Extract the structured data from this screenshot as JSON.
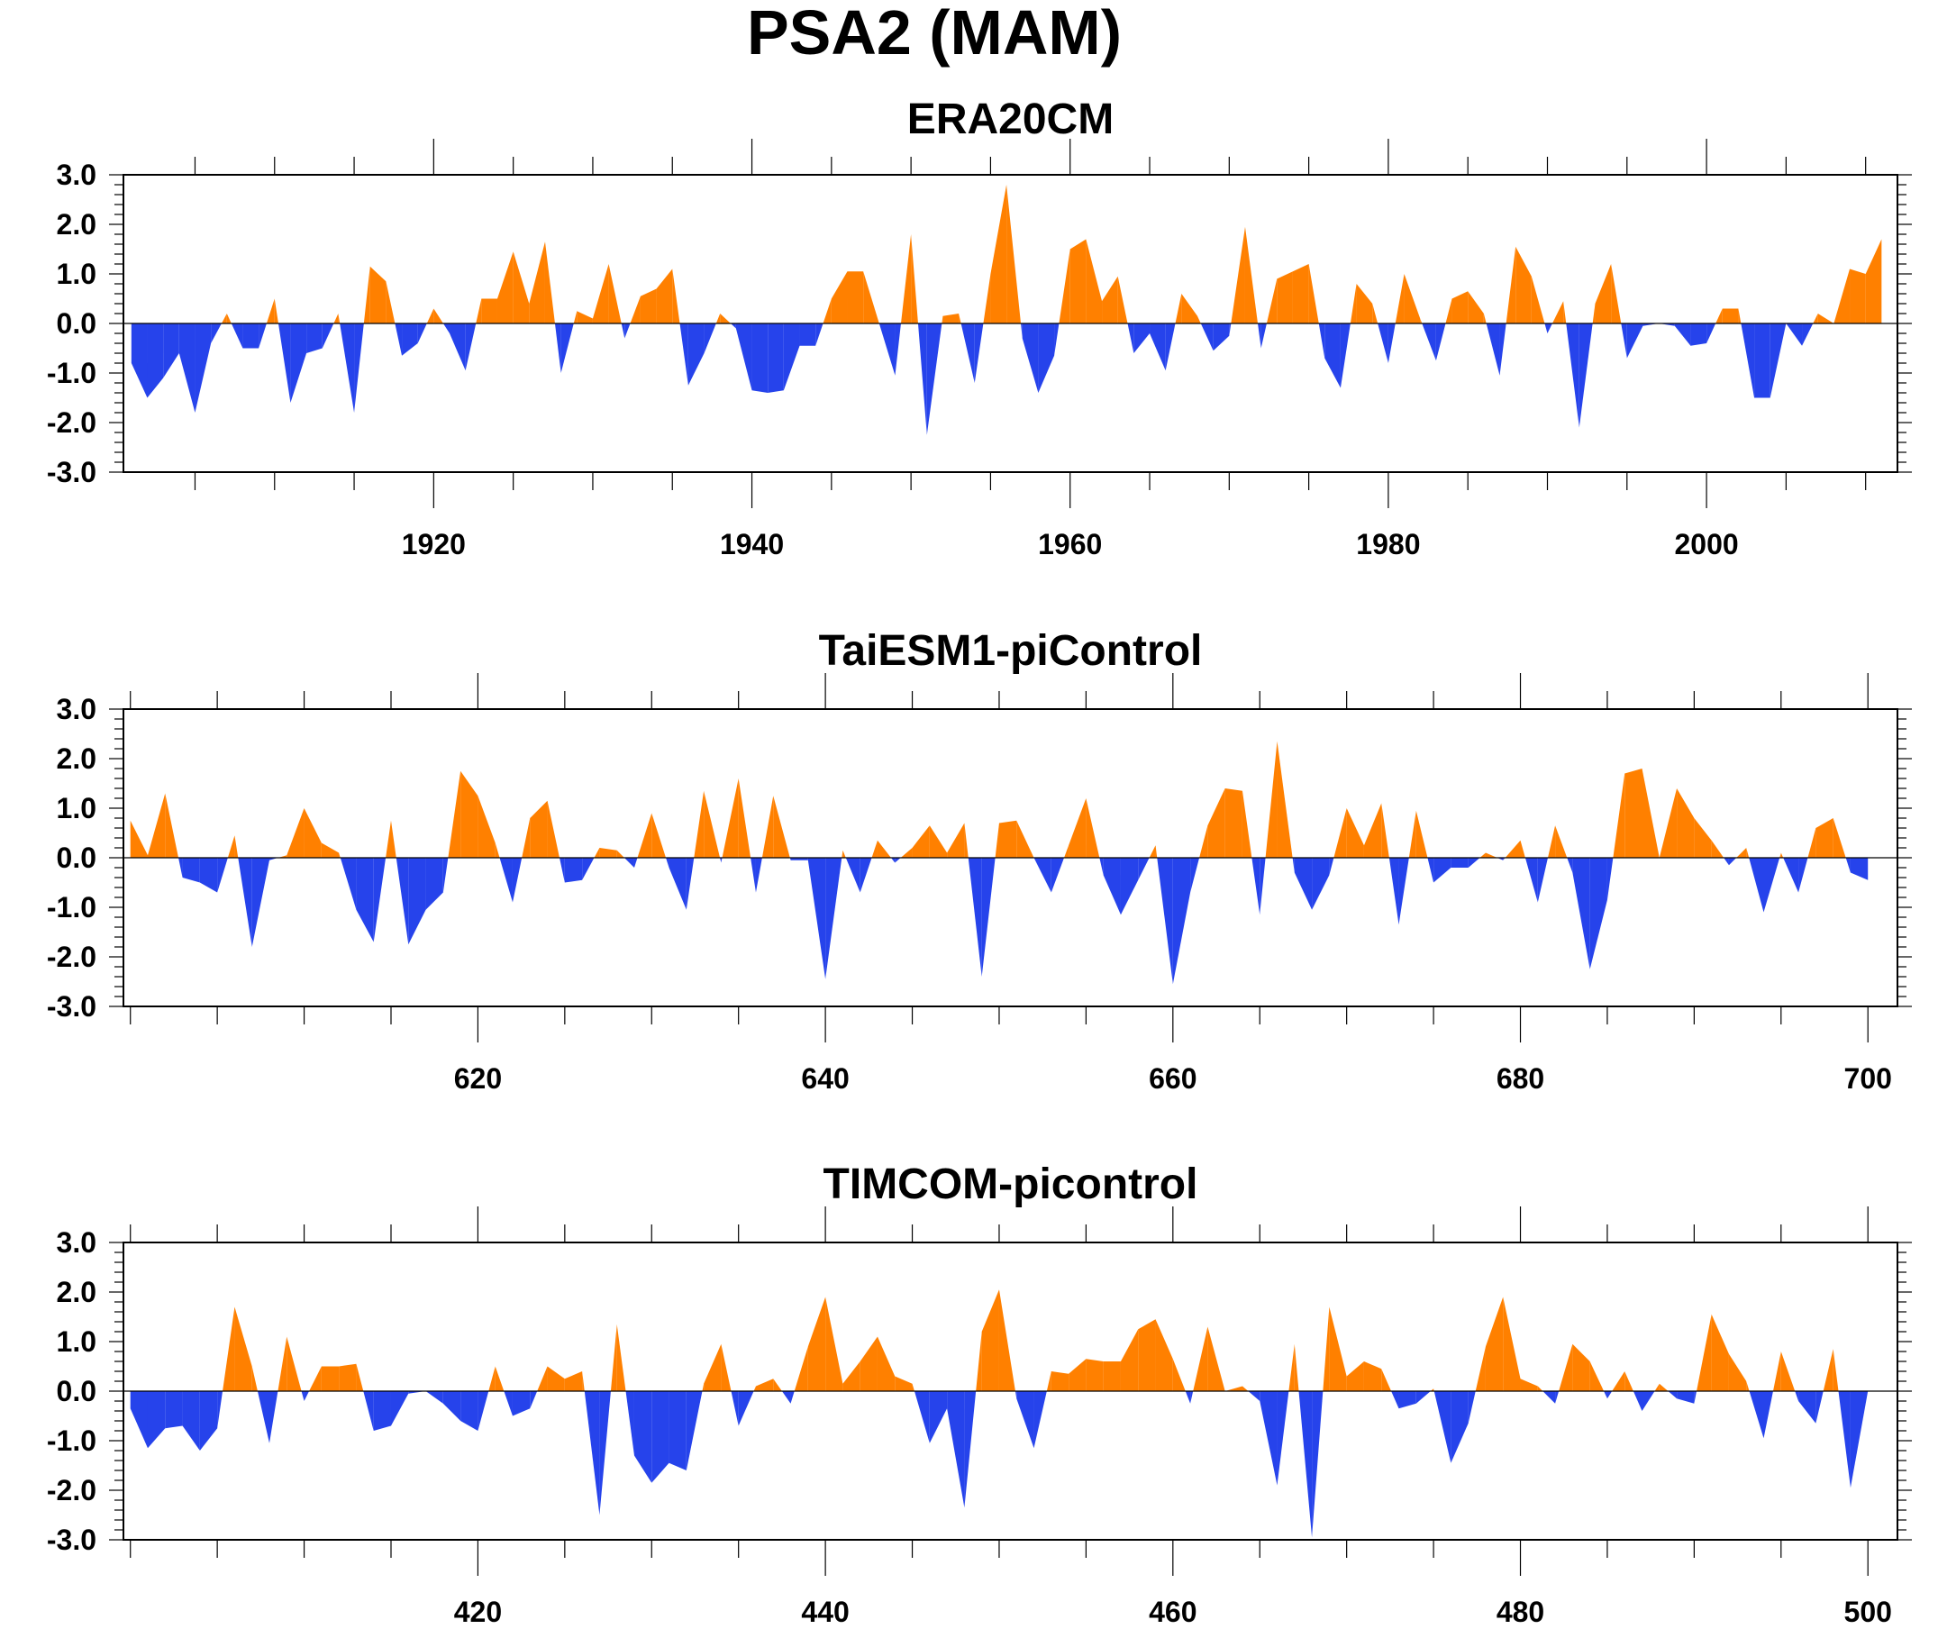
{
  "page": {
    "title": "PSA2 (MAM)"
  },
  "colors": {
    "positive": "#ff8000",
    "negative": "#2643eb",
    "axis": "#000000",
    "zero_line": "#000000"
  },
  "chart_data": [
    {
      "type": "area",
      "title": "ERA20CM",
      "xlabel": "",
      "ylabel": "",
      "x_start": 1901,
      "x_end": 2011,
      "xlim": [
        1900.5,
        2012
      ],
      "ylim": [
        -3.0,
        3.0
      ],
      "x_ticks": [
        1920,
        1940,
        1960,
        1980,
        2000
      ],
      "y_ticks": [
        -3.0,
        -2.0,
        -1.0,
        0.0,
        1.0,
        2.0,
        3.0
      ],
      "y_tick_labels": [
        "-3.0",
        "-2.0",
        "-1.0",
        "0.0",
        "1.0",
        "2.0",
        "3.0"
      ],
      "fill_above_zero": "positive",
      "fill_below_zero": "negative",
      "values": [
        -0.8,
        -1.5,
        -1.1,
        -0.6,
        -1.8,
        -0.4,
        0.2,
        -0.5,
        -0.5,
        0.5,
        -1.6,
        -0.6,
        -0.5,
        0.2,
        -1.8,
        1.15,
        0.85,
        -0.65,
        -0.4,
        0.3,
        -0.2,
        -0.95,
        0.5,
        0.5,
        1.45,
        0.4,
        1.65,
        -1.0,
        0.25,
        0.1,
        1.2,
        -0.3,
        0.55,
        0.7,
        1.1,
        -1.25,
        -0.6,
        0.2,
        -0.1,
        -1.35,
        -1.4,
        -1.35,
        -0.45,
        -0.45,
        0.5,
        1.05,
        1.05,
        0.0,
        -1.05,
        1.8,
        -2.25,
        0.15,
        0.2,
        -1.2,
        1.0,
        2.8,
        -0.3,
        -1.4,
        -0.65,
        1.5,
        1.7,
        0.45,
        0.95,
        -0.6,
        -0.2,
        -0.95,
        0.6,
        0.15,
        -0.55,
        -0.25,
        1.95,
        -0.5,
        0.9,
        1.05,
        1.2,
        -0.7,
        -1.3,
        0.8,
        0.4,
        -0.8,
        1.0,
        0.1,
        -0.75,
        0.5,
        0.65,
        0.2,
        -1.05,
        1.55,
        0.95,
        -0.2,
        0.45,
        -2.1,
        0.4,
        1.2,
        -0.7,
        -0.05,
        0.0,
        -0.05,
        -0.45,
        -0.4,
        0.3,
        0.3,
        -1.5,
        -1.5,
        0.0,
        -0.45,
        0.2,
        0.0,
        1.1,
        1.0,
        1.7
      ]
    },
    {
      "type": "area",
      "title": "TaiESM1-piControl",
      "xlabel": "",
      "ylabel": "",
      "x_start": 600,
      "x_end": 700,
      "xlim": [
        599.6,
        701.7
      ],
      "ylim": [
        -3.0,
        3.0
      ],
      "x_ticks": [
        620,
        640,
        660,
        680,
        700
      ],
      "y_ticks": [
        -3.0,
        -2.0,
        -1.0,
        0.0,
        1.0,
        2.0,
        3.0
      ],
      "y_tick_labels": [
        "-3.0",
        "-2.0",
        "-1.0",
        "0.0",
        "1.0",
        "2.0",
        "3.0"
      ],
      "fill_above_zero": "positive",
      "fill_below_zero": "negative",
      "values": [
        0.75,
        0.05,
        1.3,
        -0.4,
        -0.5,
        -0.7,
        0.45,
        -1.8,
        -0.05,
        0.05,
        1.0,
        0.3,
        0.1,
        -1.05,
        -1.7,
        0.75,
        -1.75,
        -1.05,
        -0.7,
        1.75,
        1.25,
        0.3,
        -0.9,
        0.8,
        1.15,
        -0.5,
        -0.45,
        0.2,
        0.15,
        -0.2,
        0.9,
        -0.2,
        -1.05,
        1.35,
        -0.1,
        1.6,
        -0.7,
        1.25,
        -0.05,
        -0.05,
        -2.45,
        0.15,
        -0.7,
        0.35,
        -0.1,
        0.2,
        0.65,
        0.1,
        0.7,
        -2.4,
        0.7,
        0.75,
        0.0,
        -0.7,
        0.25,
        1.2,
        -0.35,
        -1.15,
        -0.45,
        0.25,
        -2.55,
        -0.7,
        0.65,
        1.4,
        1.35,
        -1.15,
        2.35,
        -0.3,
        -1.05,
        -0.35,
        1.0,
        0.25,
        1.1,
        -1.35,
        0.95,
        -0.5,
        -0.2,
        -0.2,
        0.1,
        -0.05,
        0.35,
        -0.9,
        0.65,
        -0.3,
        -2.25,
        -0.85,
        1.7,
        1.8,
        0.0,
        1.4,
        0.8,
        0.35,
        -0.15,
        0.2,
        -1.1,
        0.1,
        -0.7,
        0.6,
        0.8,
        -0.3,
        -0.45
      ]
    },
    {
      "type": "area",
      "title": "TIMCOM-picontrol",
      "xlabel": "",
      "ylabel": "",
      "x_start": 400,
      "x_end": 500,
      "xlim": [
        399.6,
        501.7
      ],
      "ylim": [
        -3.0,
        3.0
      ],
      "x_ticks": [
        420,
        440,
        460,
        480,
        500
      ],
      "y_ticks": [
        -3.0,
        -2.0,
        -1.0,
        0.0,
        1.0,
        2.0,
        3.0
      ],
      "y_tick_labels": [
        "-3.0",
        "-2.0",
        "-1.0",
        "0.0",
        "1.0",
        "2.0",
        "3.0"
      ],
      "fill_above_zero": "positive",
      "fill_below_zero": "negative",
      "values": [
        -0.35,
        -1.15,
        -0.75,
        -0.7,
        -1.2,
        -0.75,
        1.7,
        0.5,
        -1.05,
        1.1,
        -0.2,
        0.5,
        0.5,
        0.55,
        -0.8,
        -0.7,
        -0.05,
        0.0,
        -0.25,
        -0.6,
        -0.8,
        0.5,
        -0.5,
        -0.35,
        0.5,
        0.25,
        0.4,
        -2.5,
        1.35,
        -1.3,
        -1.85,
        -1.45,
        -1.6,
        0.15,
        0.95,
        -0.7,
        0.1,
        0.25,
        -0.25,
        0.9,
        1.9,
        0.15,
        0.6,
        1.1,
        0.3,
        0.15,
        -1.05,
        -0.35,
        -2.35,
        1.2,
        2.05,
        -0.15,
        -1.15,
        0.4,
        0.35,
        0.65,
        0.6,
        0.6,
        1.25,
        1.45,
        0.65,
        -0.25,
        1.3,
        0.0,
        0.1,
        -0.2,
        -1.9,
        0.95,
        -2.95,
        1.7,
        0.3,
        0.6,
        0.45,
        -0.35,
        -0.25,
        0.05,
        -1.45,
        -0.65,
        0.9,
        1.9,
        0.25,
        0.1,
        -0.25,
        0.95,
        0.6,
        -0.15,
        0.4,
        -0.4,
        0.15,
        -0.15,
        -0.25,
        1.55,
        0.75,
        0.2,
        -0.95,
        0.8,
        -0.2,
        -0.65,
        0.85,
        -1.95,
        0.0
      ]
    }
  ]
}
